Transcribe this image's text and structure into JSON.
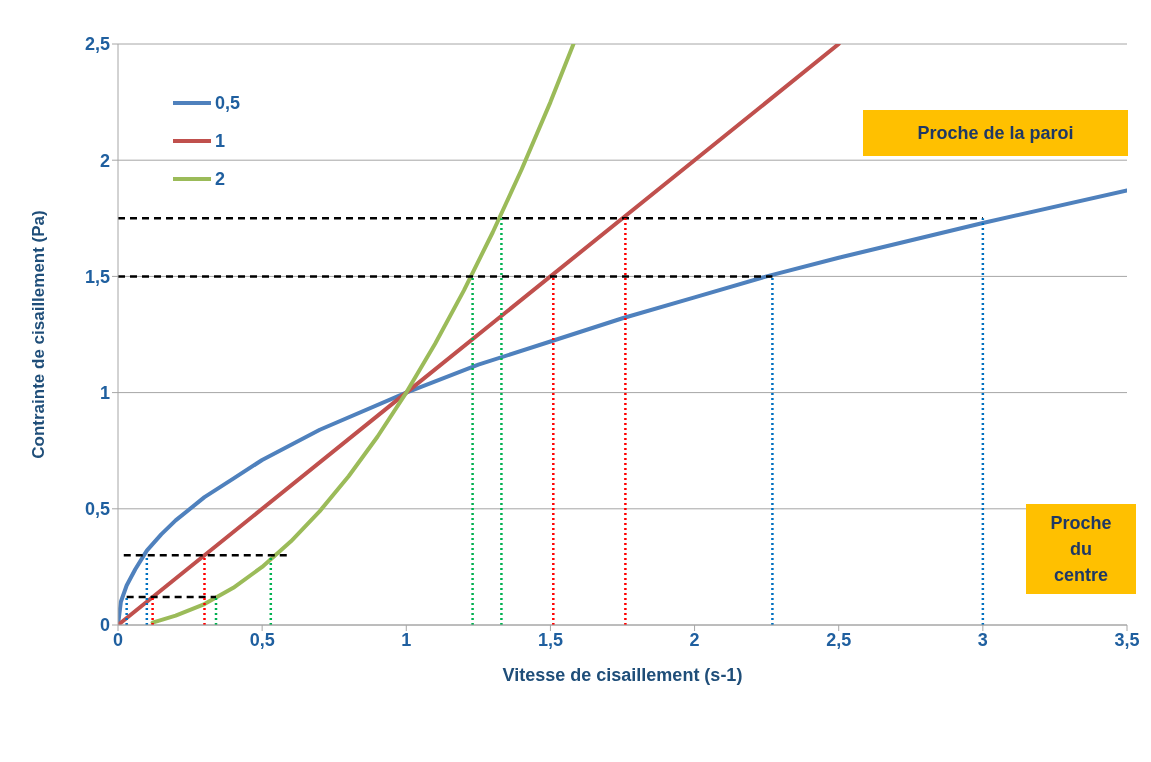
{
  "chart_data": {
    "type": "line",
    "xlabel": "Vitesse de cisaillement (s-1)",
    "ylabel": "Contrainte de cisaillement (Pa)",
    "xlim": [
      0,
      3.5
    ],
    "xticks": [
      0,
      {
        "value": 0.5,
        "label": "0,5"
      },
      1,
      {
        "value": 1.5,
        "label": "1,5"
      },
      2,
      {
        "value": 2.5,
        "label": "2,5"
      },
      3,
      {
        "value": 3.5,
        "label": "3,5"
      }
    ],
    "ylim": [
      0,
      2.5
    ],
    "yticks": [
      0,
      {
        "value": 0.5,
        "label": "0,5"
      },
      1,
      {
        "value": 1.5,
        "label": "1,5"
      },
      2,
      {
        "value": 2.5,
        "label": "2,5"
      }
    ],
    "grid": "y",
    "legend": "top left",
    "line_style": "solid",
    "marker": "none",
    "annotations": [
      "Proche de la paroi",
      "Proche du centre"
    ],
    "series": [
      {
        "name": "0,5",
        "color": "#4f81bd",
        "x": [
          0,
          0.01,
          0.03,
          0.06,
          0.1,
          0.15,
          0.2,
          0.3,
          0.4,
          0.5,
          0.7,
          1,
          1.25,
          1.5,
          1.75,
          2,
          2.25,
          2.5,
          3,
          3.5
        ],
        "values": [
          0,
          0.1,
          0.17,
          0.24,
          0.32,
          0.39,
          0.45,
          0.55,
          0.63,
          0.71,
          0.84,
          1,
          1.12,
          1.22,
          1.32,
          1.41,
          1.5,
          1.58,
          1.73,
          1.87
        ]
      },
      {
        "name": "1",
        "color": "#c0504d",
        "x": [
          0,
          1,
          2.5
        ],
        "values": [
          0,
          1,
          2.5
        ]
      },
      {
        "name": "2",
        "color": "#9bbb59",
        "x": [
          0.12,
          0.2,
          0.3,
          0.4,
          0.5,
          0.6,
          0.7,
          0.8,
          0.9,
          1,
          1.1,
          1.2,
          1.3,
          1.4,
          1.5,
          1.58
        ],
        "values": [
          0.01,
          0.04,
          0.09,
          0.16,
          0.25,
          0.36,
          0.49,
          0.64,
          0.81,
          1,
          1.21,
          1.44,
          1.69,
          1.96,
          2.25,
          2.5
        ]
      },
      {
        "color": "#000000",
        "line_style": "dashed",
        "x": [
          0,
          3
        ],
        "values": [
          1.75,
          1.75
        ]
      },
      {
        "color": "#000000",
        "line_style": "dashed",
        "x": [
          0,
          2.27
        ],
        "values": [
          1.5,
          1.5
        ]
      },
      {
        "color": "#000000",
        "line_style": "dashed",
        "x": [
          0.02,
          0.6
        ],
        "values": [
          0.3,
          0.3
        ]
      },
      {
        "color": "#000000",
        "line_style": "dashed",
        "x": [
          0.03,
          0.34
        ],
        "values": [
          0.12,
          0.12
        ]
      },
      {
        "color": "#0070c0",
        "line_style": "dotted",
        "x": [
          0.03,
          0.03
        ],
        "values": [
          0,
          0.12
        ]
      },
      {
        "color": "#0070c0",
        "line_style": "dotted",
        "x": [
          0.1,
          0.1
        ],
        "values": [
          0,
          0.3
        ]
      },
      {
        "color": "#0070c0",
        "line_style": "dotted",
        "x": [
          2.27,
          2.27
        ],
        "values": [
          0,
          1.5
        ]
      },
      {
        "color": "#0070c0",
        "line_style": "dotted",
        "x": [
          3,
          3
        ],
        "values": [
          0,
          1.75
        ]
      },
      {
        "color": "#ff0000",
        "line_style": "dotted",
        "x": [
          0.12,
          0.12
        ],
        "values": [
          0,
          0.12
        ]
      },
      {
        "color": "#ff0000",
        "line_style": "dotted",
        "x": [
          0.3,
          0.3
        ],
        "values": [
          0,
          0.3
        ]
      },
      {
        "color": "#ff0000",
        "line_style": "dotted",
        "x": [
          1.51,
          1.51
        ],
        "values": [
          0,
          1.5
        ]
      },
      {
        "color": "#ff0000",
        "line_style": "dotted",
        "x": [
          1.76,
          1.76
        ],
        "values": [
          0,
          1.75
        ]
      },
      {
        "color": "#00b050",
        "line_style": "dotted",
        "x": [
          0.34,
          0.34
        ],
        "values": [
          0,
          0.12
        ]
      },
      {
        "color": "#00b050",
        "line_style": "dotted",
        "x": [
          0.53,
          0.53
        ],
        "values": [
          0,
          0.3
        ]
      },
      {
        "color": "#00b050",
        "line_style": "dotted",
        "x": [
          1.23,
          1.23
        ],
        "values": [
          0,
          1.5
        ]
      },
      {
        "color": "#00b050",
        "line_style": "dotted",
        "x": [
          1.33,
          1.33
        ],
        "values": [
          0,
          1.75
        ]
      }
    ]
  }
}
